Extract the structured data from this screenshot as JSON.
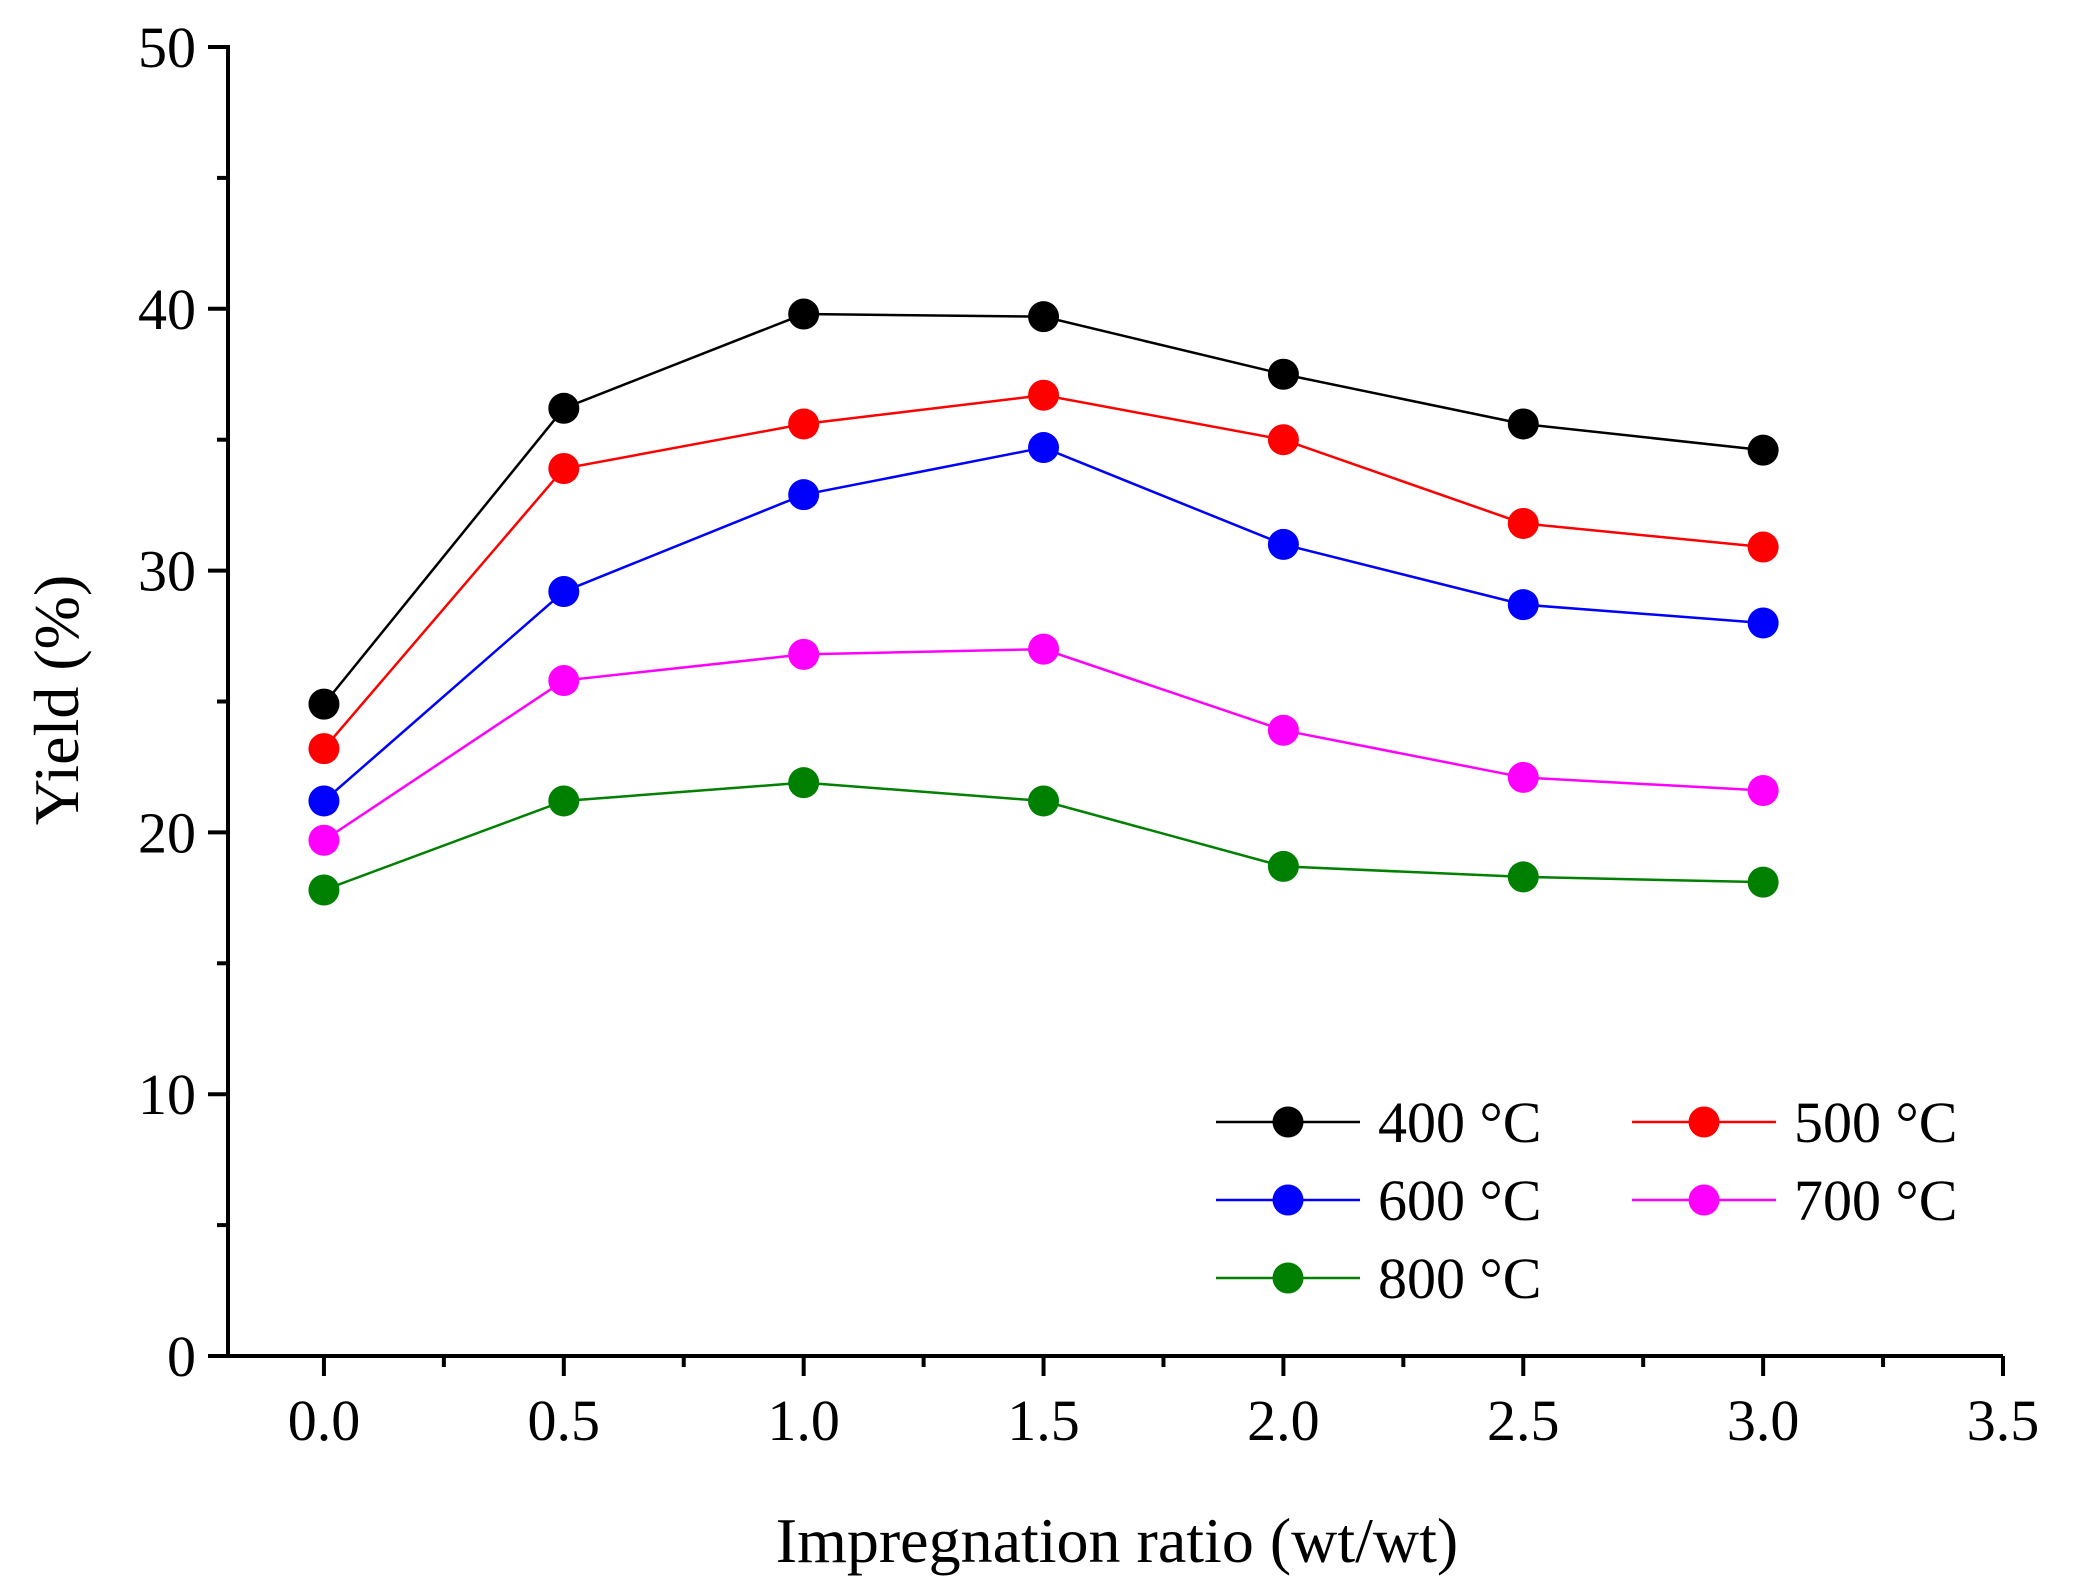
{
  "chart_data": {
    "type": "line",
    "title": "",
    "xlabel": "Impregnation ratio (wt/wt)",
    "ylabel": "Yield (%)",
    "xlim": [
      -0.2,
      3.5
    ],
    "ylim": [
      0,
      50
    ],
    "x_ticks": [
      0.0,
      0.5,
      1.0,
      1.5,
      2.0,
      2.5,
      3.0,
      3.5
    ],
    "x_tick_labels": [
      "0.0",
      "0.5",
      "1.0",
      "1.5",
      "2.0",
      "2.5",
      "3.0",
      "3.5"
    ],
    "y_ticks": [
      0,
      10,
      20,
      30,
      40,
      50
    ],
    "y_tick_labels": [
      "0",
      "10",
      "20",
      "30",
      "40",
      "50"
    ],
    "x": [
      0.0,
      0.5,
      1.0,
      1.5,
      2.0,
      2.5,
      3.0
    ],
    "series": [
      {
        "name": "400 °C",
        "color": "#000000",
        "values": [
          24.9,
          36.2,
          39.8,
          39.7,
          37.5,
          35.6,
          34.6
        ]
      },
      {
        "name": "500 °C",
        "color": "#ff0000",
        "values": [
          23.2,
          33.9,
          35.6,
          36.7,
          35.0,
          31.8,
          30.9
        ]
      },
      {
        "name": "600 °C",
        "color": "#0000ff",
        "values": [
          21.2,
          29.2,
          32.9,
          34.7,
          31.0,
          28.7,
          28.0
        ]
      },
      {
        "name": "700 °C",
        "color": "#ff00ff",
        "values": [
          19.7,
          25.8,
          26.8,
          27.0,
          23.9,
          22.1,
          21.6
        ]
      },
      {
        "name": "800 °C",
        "color": "#008000",
        "values": [
          17.8,
          21.2,
          21.9,
          21.2,
          18.7,
          18.3,
          18.1
        ]
      }
    ],
    "legend": {
      "placement": "bottom-right",
      "columns": 2
    },
    "grid": false
  }
}
